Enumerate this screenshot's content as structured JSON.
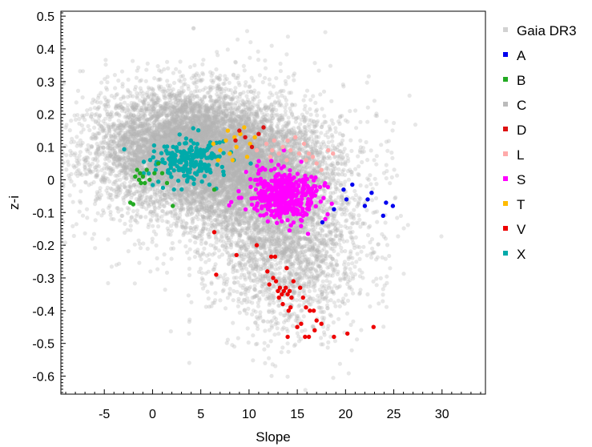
{
  "chart_data": {
    "type": "scatter",
    "title": "",
    "xlabel": "Slope",
    "ylabel": "z-i",
    "xlim": [
      -9.5,
      34.5
    ],
    "ylim": [
      -0.655,
      0.515
    ],
    "x_ticks": [
      -5,
      0,
      5,
      10,
      15,
      20,
      25,
      30
    ],
    "y_ticks": [
      0.5,
      0.4,
      0.3,
      0.2,
      0.1,
      0,
      -0.1,
      -0.2,
      -0.3,
      -0.4,
      -0.5,
      -0.6
    ],
    "grid": false,
    "legend_position": "outside-right",
    "background": {
      "name": "Gaia DR3",
      "color": "#b4b4b4",
      "clusters": [
        {
          "cx": 3.5,
          "cy": 0.1,
          "sx": 4.5,
          "sy": 0.085,
          "n": 5500
        },
        {
          "cx": 10.5,
          "cy": 0.02,
          "sx": 4.5,
          "sy": 0.09,
          "n": 3500
        },
        {
          "cx": 14,
          "cy": -0.2,
          "sx": 4.0,
          "sy": 0.13,
          "n": 2200
        },
        {
          "cx": 5,
          "cy": 0.05,
          "sx": 8.0,
          "sy": 0.15,
          "n": 1300
        }
      ]
    },
    "series": [
      {
        "name": "A",
        "color": "#0000ee",
        "points": [
          [
            19.8,
            -0.03
          ],
          [
            20.1,
            -0.06
          ],
          [
            20.7,
            -0.015
          ],
          [
            22.0,
            -0.08
          ],
          [
            22.3,
            -0.06
          ],
          [
            22.7,
            -0.04
          ],
          [
            23.9,
            -0.11
          ],
          [
            24.2,
            -0.07
          ],
          [
            24.9,
            -0.08
          ],
          [
            17.6,
            -0.13
          ],
          [
            18.8,
            -0.09
          ]
        ]
      },
      {
        "name": "B",
        "color": "#22aa22",
        "points": [
          [
            -2.3,
            -0.07
          ],
          [
            -2.0,
            -0.075
          ],
          [
            -1.6,
            0.03
          ],
          [
            -1.4,
            0.0
          ],
          [
            -1.3,
            0.02
          ],
          [
            -1.0,
            0.01
          ],
          [
            -0.8,
            -0.01
          ],
          [
            -0.6,
            0.03
          ],
          [
            -0.3,
            0.0
          ],
          [
            0.2,
            0.02
          ],
          [
            0.6,
            0.05
          ],
          [
            1.0,
            0.02
          ],
          [
            1.5,
            -0.01
          ],
          [
            2.1,
            -0.08
          ],
          [
            6.4,
            -0.03
          ],
          [
            -1.8,
            0.01
          ],
          [
            -1.2,
            -0.01
          ]
        ]
      },
      {
        "name": "C",
        "color": "#bbbbbb",
        "cluster": {
          "cx": 1.6,
          "cy": 0.06,
          "sx": 1.2,
          "sy": 0.035,
          "n": 170
        }
      },
      {
        "name": "D",
        "color": "#dd1111",
        "points": [
          [
            9.0,
            0.15
          ],
          [
            9.6,
            0.13
          ],
          [
            10.3,
            0.1
          ],
          [
            11.0,
            0.14
          ],
          [
            11.5,
            0.16
          ],
          [
            8.6,
            0.12
          ]
        ]
      },
      {
        "name": "L",
        "color": "#ffaaaa",
        "points": [
          [
            10.8,
            0.09
          ],
          [
            11.8,
            0.11
          ],
          [
            12.2,
            0.07
          ],
          [
            12.6,
            0.12
          ],
          [
            13.1,
            0.08
          ],
          [
            13.5,
            0.1
          ],
          [
            13.9,
            0.06
          ],
          [
            14.3,
            0.09
          ],
          [
            14.8,
            0.13
          ],
          [
            15.2,
            0.08
          ],
          [
            15.7,
            0.11
          ],
          [
            16.2,
            0.08
          ],
          [
            16.6,
            0.07
          ],
          [
            17.0,
            0.05
          ],
          [
            17.5,
            0.03
          ],
          [
            18.2,
            0.09
          ],
          [
            18.7,
            0.08
          ],
          [
            14.0,
            0.12
          ],
          [
            12.4,
            0.09
          ],
          [
            15.9,
            0.06
          ]
        ]
      },
      {
        "name": "S",
        "color": "#ff00ff",
        "cluster": {
          "cx": 13.6,
          "cy": -0.045,
          "sx": 1.9,
          "sy": 0.04,
          "n": 420
        }
      },
      {
        "name": "T",
        "color": "#ffbb00",
        "points": [
          [
            6.3,
            0.11
          ],
          [
            7.0,
            0.09
          ],
          [
            7.6,
            0.12
          ],
          [
            8.0,
            0.08
          ],
          [
            8.3,
            0.06
          ],
          [
            8.7,
            0.1
          ],
          [
            9.1,
            0.14
          ],
          [
            9.5,
            0.16
          ],
          [
            10.1,
            0.11
          ],
          [
            7.8,
            0.15
          ],
          [
            8.5,
            0.13
          ],
          [
            9.8,
            0.07
          ],
          [
            6.8,
            0.06
          ],
          [
            10.6,
            0.13
          ]
        ]
      },
      {
        "name": "V",
        "color": "#ee0000",
        "points": [
          [
            6.4,
            -0.16
          ],
          [
            6.6,
            -0.29
          ],
          [
            8.7,
            -0.23
          ],
          [
            12.3,
            -0.235
          ],
          [
            12.7,
            -0.235
          ],
          [
            11.9,
            -0.28
          ],
          [
            12.1,
            -0.32
          ],
          [
            12.8,
            -0.31
          ],
          [
            13.0,
            -0.34
          ],
          [
            13.2,
            -0.33
          ],
          [
            13.4,
            -0.35
          ],
          [
            13.6,
            -0.34
          ],
          [
            13.8,
            -0.33
          ],
          [
            14.0,
            -0.35
          ],
          [
            14.2,
            -0.34
          ],
          [
            14.4,
            -0.36
          ],
          [
            13.5,
            -0.38
          ],
          [
            14.1,
            -0.4
          ],
          [
            14.3,
            -0.39
          ],
          [
            14.6,
            -0.31
          ],
          [
            15.3,
            -0.33
          ],
          [
            15.6,
            -0.36
          ],
          [
            15.9,
            -0.39
          ],
          [
            16.3,
            -0.4
          ],
          [
            16.7,
            -0.4
          ],
          [
            17.0,
            -0.43
          ],
          [
            16.8,
            -0.46
          ],
          [
            15.4,
            -0.44
          ],
          [
            15.8,
            -0.48
          ],
          [
            16.2,
            -0.48
          ],
          [
            17.5,
            -0.44
          ],
          [
            18.8,
            -0.48
          ],
          [
            20.2,
            -0.47
          ],
          [
            14.0,
            -0.48
          ],
          [
            13.1,
            -0.36
          ],
          [
            22.9,
            -0.45
          ],
          [
            10.8,
            -0.2
          ],
          [
            12.5,
            -0.3
          ],
          [
            13.9,
            -0.27
          ],
          [
            15.0,
            -0.45
          ]
        ]
      },
      {
        "name": "X",
        "color": "#00aaaa",
        "cluster": {
          "cx": 3.8,
          "cy": 0.06,
          "sx": 1.9,
          "sy": 0.033,
          "n": 220
        }
      }
    ],
    "legend": [
      "Gaia DR3",
      "A",
      "B",
      "C",
      "D",
      "L",
      "S",
      "T",
      "V",
      "X"
    ]
  }
}
